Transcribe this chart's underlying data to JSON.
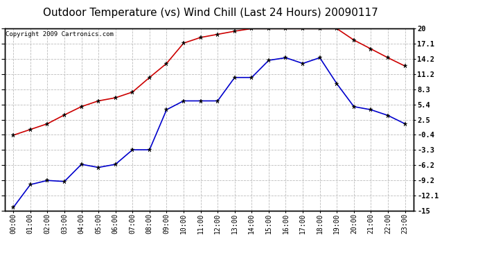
{
  "title": "Outdoor Temperature (vs) Wind Chill (Last 24 Hours) 20090117",
  "copyright": "Copyright 2009 Cartronics.com",
  "hours": [
    "00:00",
    "01:00",
    "02:00",
    "03:00",
    "04:00",
    "05:00",
    "06:00",
    "07:00",
    "08:00",
    "09:00",
    "10:00",
    "11:00",
    "12:00",
    "13:00",
    "14:00",
    "15:00",
    "16:00",
    "17:00",
    "18:00",
    "19:00",
    "20:00",
    "21:00",
    "22:00",
    "23:00"
  ],
  "temp_red": [
    -0.5,
    0.6,
    1.7,
    3.4,
    5.0,
    6.1,
    6.7,
    7.8,
    10.6,
    13.3,
    17.2,
    18.3,
    18.9,
    19.5,
    20.0,
    20.0,
    20.0,
    20.0,
    20.0,
    20.0,
    17.8,
    16.1,
    14.4,
    12.8
  ],
  "wind_chill_blue": [
    -14.4,
    -10.0,
    -9.2,
    -9.4,
    -6.1,
    -6.7,
    -6.1,
    -3.3,
    -3.3,
    4.4,
    6.1,
    6.1,
    6.1,
    10.6,
    10.6,
    13.9,
    14.4,
    13.3,
    14.4,
    9.4,
    5.0,
    4.4,
    3.3,
    1.7
  ],
  "yticks": [
    20.0,
    17.1,
    14.2,
    11.2,
    8.3,
    5.4,
    2.5,
    -0.4,
    -3.3,
    -6.2,
    -9.2,
    -12.1,
    -15.0
  ],
  "ylim": [
    -15.0,
    20.0
  ],
  "red_color": "#cc0000",
  "blue_color": "#0000cc",
  "grid_color": "#bbbbbb",
  "bg_color": "#ffffff",
  "title_fontsize": 11,
  "copyright_fontsize": 6.5,
  "tick_fontsize": 7,
  "ytick_fontsize": 7.5
}
